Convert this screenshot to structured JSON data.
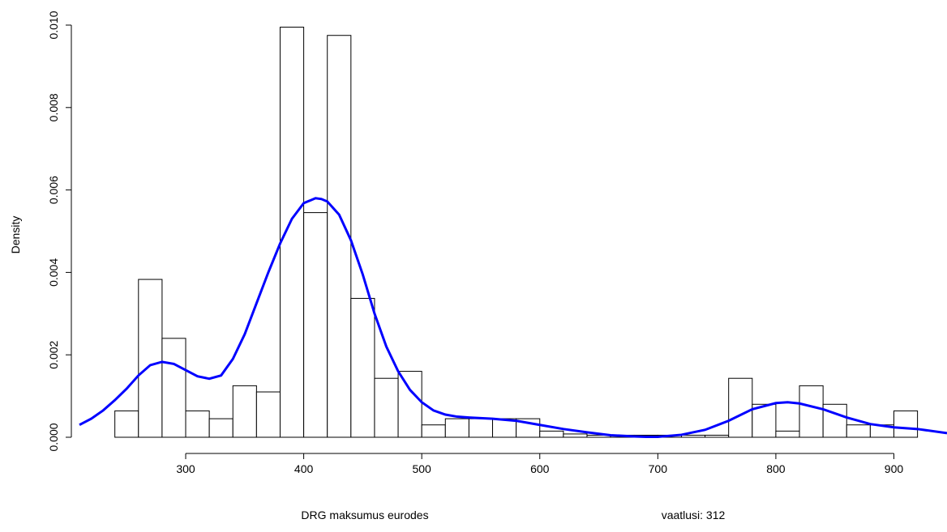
{
  "chart_data": {
    "type": "bar",
    "subtype": "histogram_with_density",
    "xlabel": "DRG maksumus eurodes",
    "ylabel": "Density",
    "note": "vaatlusi: 312",
    "xlim": [
      210,
      945
    ],
    "ylim": [
      0,
      0.01
    ],
    "x_ticks": [
      300,
      400,
      500,
      600,
      700,
      800,
      900
    ],
    "y_ticks": [
      "0.000",
      "0.002",
      "0.004",
      "0.006",
      "0.008",
      "0.010"
    ],
    "grid": false,
    "bin_width": 20,
    "bins": [
      {
        "start": 240,
        "end": 260,
        "density": 0.00064
      },
      {
        "start": 260,
        "end": 280,
        "density": 0.00383
      },
      {
        "start": 280,
        "end": 300,
        "density": 0.0024
      },
      {
        "start": 300,
        "end": 320,
        "density": 0.00064
      },
      {
        "start": 320,
        "end": 340,
        "density": 0.00045
      },
      {
        "start": 340,
        "end": 360,
        "density": 0.00125
      },
      {
        "start": 360,
        "end": 380,
        "density": 0.0011
      },
      {
        "start": 380,
        "end": 400,
        "density": 0.00995
      },
      {
        "start": 400,
        "end": 420,
        "density": 0.00545
      },
      {
        "start": 420,
        "end": 440,
        "density": 0.00975
      },
      {
        "start": 440,
        "end": 460,
        "density": 0.00337
      },
      {
        "start": 460,
        "end": 480,
        "density": 0.00143
      },
      {
        "start": 480,
        "end": 500,
        "density": 0.0016
      },
      {
        "start": 500,
        "end": 520,
        "density": 0.0003
      },
      {
        "start": 520,
        "end": 540,
        "density": 0.00045
      },
      {
        "start": 540,
        "end": 560,
        "density": 0.00045
      },
      {
        "start": 560,
        "end": 580,
        "density": 0.00045
      },
      {
        "start": 580,
        "end": 600,
        "density": 0.00045
      },
      {
        "start": 600,
        "end": 620,
        "density": 0.00015
      },
      {
        "start": 620,
        "end": 640,
        "density": 8e-05
      },
      {
        "start": 640,
        "end": 660,
        "density": 5e-05
      },
      {
        "start": 660,
        "end": 680,
        "density": 5e-05
      },
      {
        "start": 680,
        "end": 700,
        "density": 5e-05
      },
      {
        "start": 700,
        "end": 720,
        "density": 5e-05
      },
      {
        "start": 720,
        "end": 740,
        "density": 5e-05
      },
      {
        "start": 740,
        "end": 760,
        "density": 5e-05
      },
      {
        "start": 760,
        "end": 780,
        "density": 0.00143
      },
      {
        "start": 780,
        "end": 800,
        "density": 0.0008
      },
      {
        "start": 800,
        "end": 820,
        "density": 0.00015
      },
      {
        "start": 820,
        "end": 840,
        "density": 0.00125
      },
      {
        "start": 840,
        "end": 860,
        "density": 0.0008
      },
      {
        "start": 860,
        "end": 880,
        "density": 0.0003
      },
      {
        "start": 880,
        "end": 900,
        "density": 0.0003
      },
      {
        "start": 900,
        "end": 920,
        "density": 0.00064
      }
    ],
    "density_curve": {
      "color": "#0000FF",
      "x": [
        210,
        220,
        230,
        240,
        250,
        260,
        270,
        280,
        290,
        300,
        310,
        320,
        330,
        340,
        350,
        360,
        370,
        380,
        390,
        400,
        410,
        415,
        420,
        430,
        440,
        450,
        460,
        470,
        480,
        490,
        500,
        510,
        520,
        530,
        540,
        560,
        580,
        600,
        620,
        640,
        660,
        680,
        690,
        700,
        720,
        740,
        760,
        780,
        800,
        810,
        820,
        840,
        860,
        880,
        900,
        920,
        945
      ],
      "y": [
        0.0003,
        0.00045,
        0.00065,
        0.0009,
        0.00118,
        0.0015,
        0.00175,
        0.00183,
        0.00178,
        0.00163,
        0.00148,
        0.00142,
        0.0015,
        0.0019,
        0.0025,
        0.00325,
        0.004,
        0.0047,
        0.0053,
        0.00568,
        0.0058,
        0.00578,
        0.00572,
        0.0054,
        0.00478,
        0.00395,
        0.003,
        0.0022,
        0.0016,
        0.00115,
        0.00085,
        0.00065,
        0.00055,
        0.0005,
        0.00048,
        0.00045,
        0.0004,
        0.0003,
        0.0002,
        0.00012,
        5e-05,
        2e-05,
        1e-05,
        1e-05,
        6e-05,
        0.00018,
        0.0004,
        0.00068,
        0.00083,
        0.00085,
        0.00082,
        0.00068,
        0.00048,
        0.00032,
        0.00024,
        0.0002,
        0.0001
      ]
    }
  }
}
